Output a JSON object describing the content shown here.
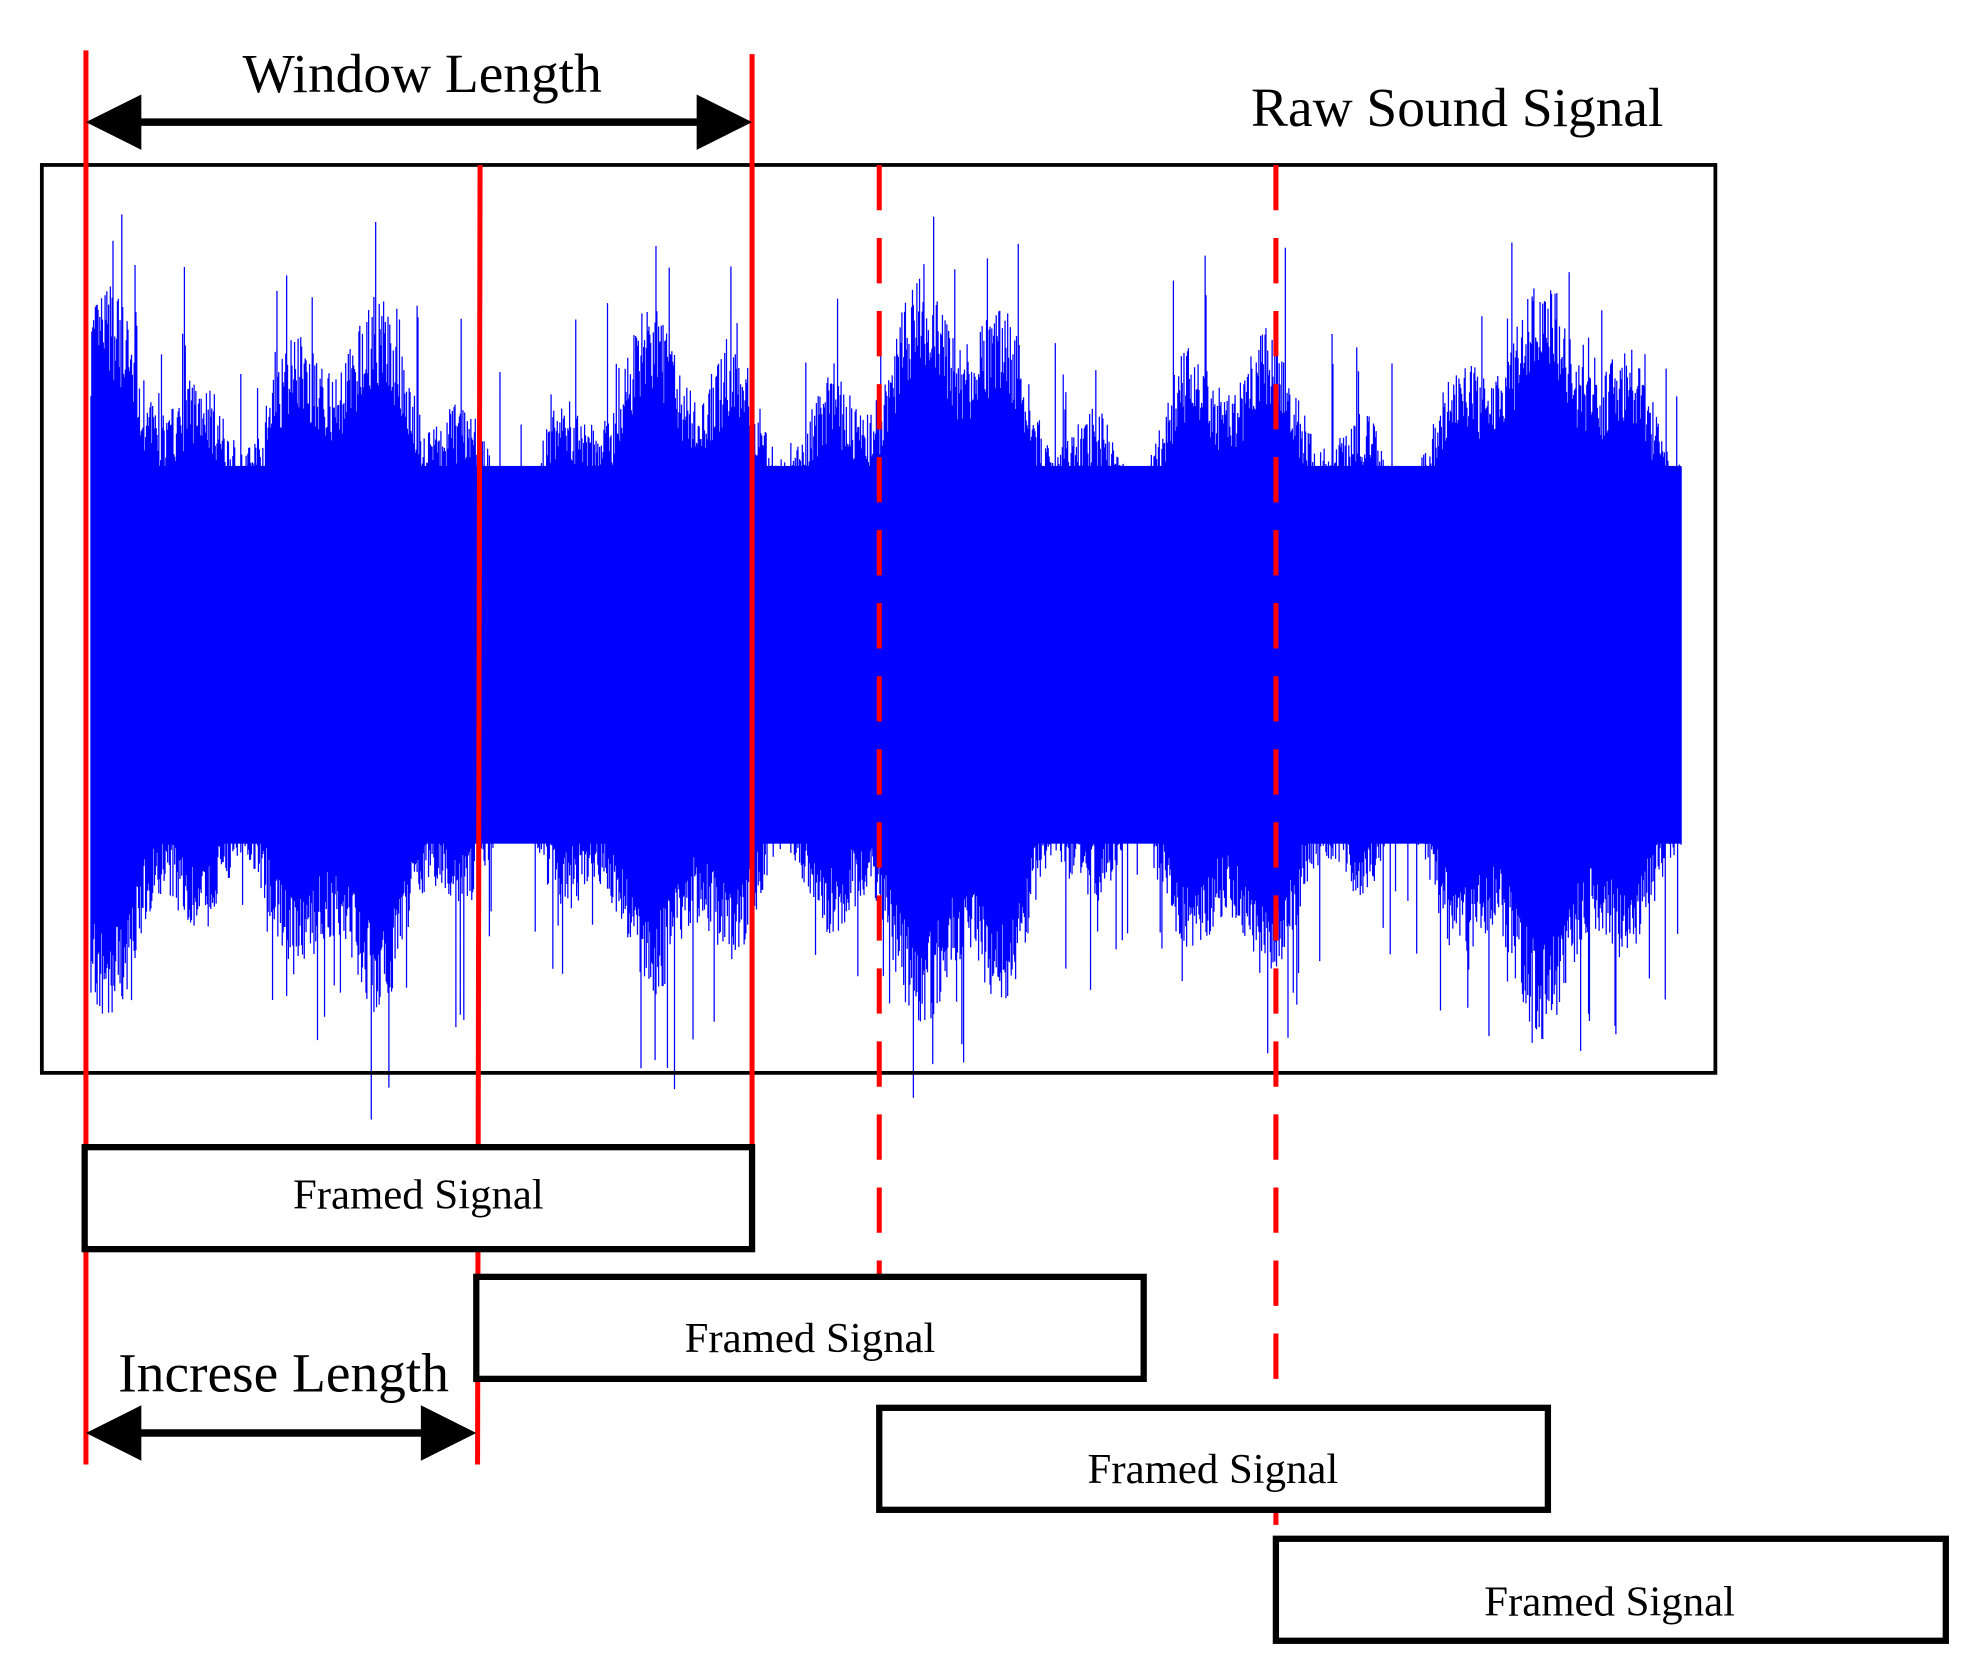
{
  "labels": {
    "window_length": "Window Length",
    "raw_signal": "Raw Sound Signal",
    "increase_length": "Increse Length"
  },
  "frames": [
    {
      "label": "Framed Signal"
    },
    {
      "label": "Framed Signal"
    },
    {
      "label": "Framed Signal"
    },
    {
      "label": "Framed Signal"
    }
  ]
}
